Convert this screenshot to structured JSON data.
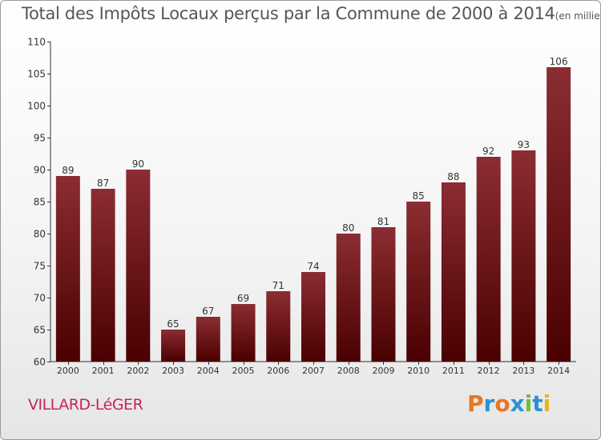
{
  "title": "Total des Impôts Locaux perçus par la Commune de 2000 à 2014",
  "unit_label": "(en milliers d'€)",
  "commune": "VILLARD-LéGER",
  "logo_text": "Proxiti",
  "colors": {
    "bar_top": "#8b2d33",
    "bar_bottom": "#4a0000",
    "axis": "#333333",
    "title": "#555555",
    "commune": "#c2275a"
  },
  "chart_data": {
    "type": "bar",
    "title": "Total des Impôts Locaux perçus par la Commune de 2000 à 2014",
    "ylabel": "(en milliers d'€)",
    "xlabel": "",
    "categories": [
      "2000",
      "2001",
      "2002",
      "2003",
      "2004",
      "2005",
      "2006",
      "2007",
      "2008",
      "2009",
      "2010",
      "2011",
      "2012",
      "2013",
      "2014"
    ],
    "values": [
      89,
      87,
      90,
      65,
      67,
      69,
      71,
      74,
      80,
      81,
      85,
      88,
      92,
      93,
      106
    ],
    "ylim": [
      60,
      110
    ],
    "yticks": [
      60,
      65,
      70,
      75,
      80,
      85,
      90,
      95,
      100,
      105,
      110
    ],
    "legend": "none"
  }
}
